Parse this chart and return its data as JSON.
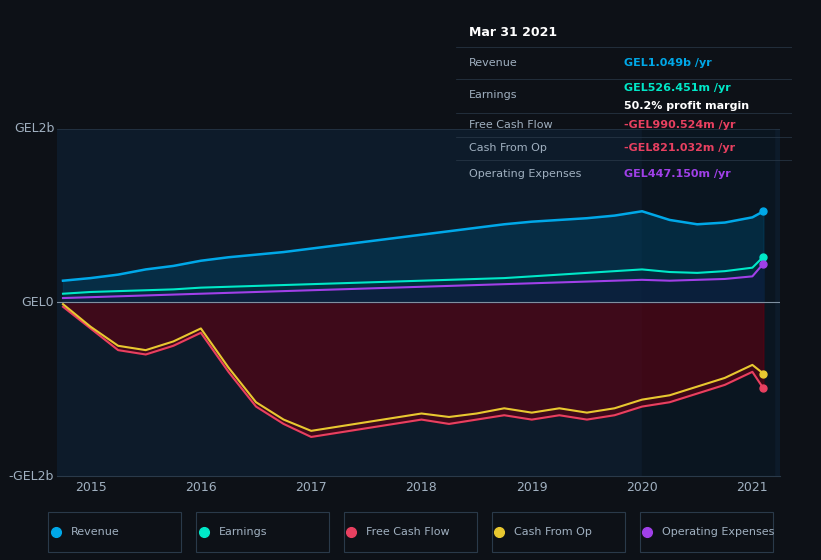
{
  "title": "Mar 31 2021",
  "bg_color": "#0d1117",
  "plot_bg_color": "#0d1b2a",
  "grid_color": "#2a3a4a",
  "years": [
    2014.75,
    2015.0,
    2015.25,
    2015.5,
    2015.75,
    2016.0,
    2016.25,
    2016.5,
    2016.75,
    2017.0,
    2017.25,
    2017.5,
    2017.75,
    2018.0,
    2018.25,
    2018.5,
    2018.75,
    2019.0,
    2019.25,
    2019.5,
    2019.75,
    2020.0,
    2020.25,
    2020.5,
    2020.75,
    2021.0,
    2021.1
  ],
  "revenue": [
    0.25,
    0.28,
    0.32,
    0.38,
    0.42,
    0.48,
    0.52,
    0.55,
    0.58,
    0.62,
    0.66,
    0.7,
    0.74,
    0.78,
    0.82,
    0.86,
    0.9,
    0.93,
    0.95,
    0.97,
    1.0,
    1.05,
    0.95,
    0.9,
    0.92,
    0.98,
    1.049
  ],
  "earnings": [
    0.1,
    0.12,
    0.13,
    0.14,
    0.15,
    0.17,
    0.18,
    0.19,
    0.2,
    0.21,
    0.22,
    0.23,
    0.24,
    0.25,
    0.26,
    0.27,
    0.28,
    0.3,
    0.32,
    0.34,
    0.36,
    0.38,
    0.35,
    0.34,
    0.36,
    0.4,
    0.526
  ],
  "free_cash_flow": [
    -0.05,
    -0.3,
    -0.55,
    -0.6,
    -0.5,
    -0.35,
    -0.8,
    -1.2,
    -1.4,
    -1.55,
    -1.5,
    -1.45,
    -1.4,
    -1.35,
    -1.4,
    -1.35,
    -1.3,
    -1.35,
    -1.3,
    -1.35,
    -1.3,
    -1.2,
    -1.15,
    -1.05,
    -0.95,
    -0.8,
    -0.991
  ],
  "cash_from_op": [
    -0.02,
    -0.28,
    -0.5,
    -0.55,
    -0.45,
    -0.3,
    -0.75,
    -1.15,
    -1.35,
    -1.48,
    -1.43,
    -1.38,
    -1.33,
    -1.28,
    -1.32,
    -1.28,
    -1.22,
    -1.27,
    -1.22,
    -1.27,
    -1.22,
    -1.12,
    -1.07,
    -0.97,
    -0.87,
    -0.72,
    -0.821
  ],
  "operating_expenses": [
    0.05,
    0.06,
    0.07,
    0.08,
    0.09,
    0.1,
    0.11,
    0.12,
    0.13,
    0.14,
    0.15,
    0.16,
    0.17,
    0.18,
    0.19,
    0.2,
    0.21,
    0.22,
    0.23,
    0.24,
    0.25,
    0.26,
    0.25,
    0.26,
    0.27,
    0.3,
    0.447
  ],
  "revenue_color": "#00a8e8",
  "earnings_color": "#00e8c8",
  "free_cash_flow_color": "#e84060",
  "cash_from_op_color": "#e8c830",
  "operating_expenses_color": "#a040e8",
  "highlight_color": "#1a2a3a",
  "highlight_x_start": 2020.0,
  "highlight_x_end": 2021.2,
  "info_box": {
    "date": "Mar 31 2021",
    "revenue_label": "Revenue",
    "revenue_value": "GEL1.049b",
    "revenue_color": "#00a8e8",
    "earnings_label": "Earnings",
    "earnings_value": "GEL526.451m",
    "earnings_color": "#00e8c8",
    "margin_value": "50.2% profit margin",
    "fcf_label": "Free Cash Flow",
    "fcf_value": "-GEL990.524m",
    "fcf_color": "#e84060",
    "cfo_label": "Cash From Op",
    "cfo_value": "-GEL821.032m",
    "cfo_color": "#e84060",
    "opex_label": "Operating Expenses",
    "opex_value": "GEL447.150m",
    "opex_color": "#a040e8"
  },
  "ylim": [
    -2.0,
    2.0
  ],
  "xlim": [
    2014.7,
    2021.25
  ]
}
